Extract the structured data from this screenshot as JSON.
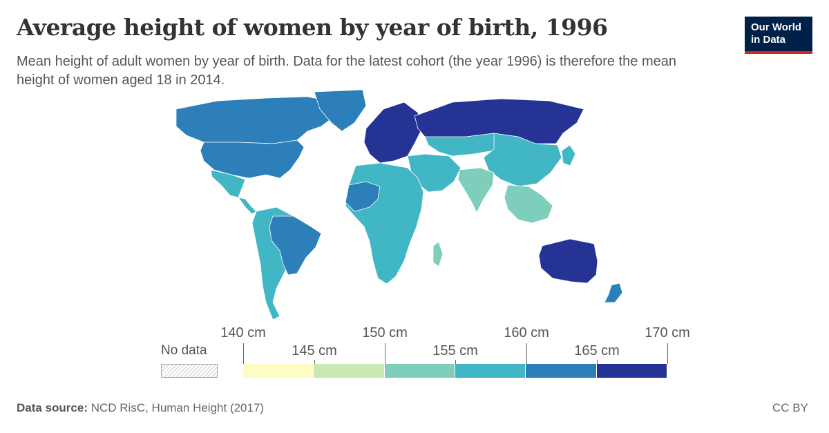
{
  "header": {
    "title": "Average height of women by year of birth, 1996",
    "subtitle": "Mean height of adult women by year of birth. Data for the latest cohort (the year 1996) is therefore the mean height of women aged 18 in 2014.",
    "logo_line1": "Our World",
    "logo_line2": "in Data"
  },
  "legend": {
    "no_data_label": "No data",
    "upper_ticks": [
      "140 cm",
      "150 cm",
      "160 cm",
      "170 cm"
    ],
    "lower_ticks": [
      "145 cm",
      "155 cm",
      "165 cm"
    ],
    "bins": [
      {
        "from": 140,
        "to": 145,
        "color": "#fdfdc3"
      },
      {
        "from": 145,
        "to": 150,
        "color": "#c8e9b5"
      },
      {
        "from": 150,
        "to": 155,
        "color": "#7fcdbb"
      },
      {
        "from": 155,
        "to": 160,
        "color": "#41b6c4"
      },
      {
        "from": 160,
        "to": 165,
        "color": "#2c7fb8"
      },
      {
        "from": 165,
        "to": 170,
        "color": "#253494"
      }
    ]
  },
  "footer": {
    "source_label": "Data source:",
    "source_text": "NCD RisC, Human Height (2017)",
    "license": "CC BY"
  },
  "map": {
    "regions": [
      {
        "name": "Canada",
        "color": "#2c7fb8"
      },
      {
        "name": "Greenland",
        "color": "#2c7fb8"
      },
      {
        "name": "United States",
        "color": "#2c7fb8"
      },
      {
        "name": "Mexico",
        "color": "#41b6c4"
      },
      {
        "name": "Central America",
        "color": "#41b6c4"
      },
      {
        "name": "South America",
        "color": "#41b6c4"
      },
      {
        "name": "Brazil",
        "color": "#2c7fb8"
      },
      {
        "name": "Europe",
        "color": "#253494"
      },
      {
        "name": "Russia",
        "color": "#253494"
      },
      {
        "name": "Central Asia",
        "color": "#41b6c4"
      },
      {
        "name": "China",
        "color": "#41b6c4"
      },
      {
        "name": "Middle East",
        "color": "#41b6c4"
      },
      {
        "name": "India",
        "color": "#7fcdbb"
      },
      {
        "name": "Southeast Asia",
        "color": "#7fcdbb"
      },
      {
        "name": "Africa",
        "color": "#41b6c4"
      },
      {
        "name": "West Africa",
        "color": "#2c7fb8"
      },
      {
        "name": "Madagascar",
        "color": "#7fcdbb"
      },
      {
        "name": "Australia",
        "color": "#253494"
      },
      {
        "name": "New Zealand",
        "color": "#2c7fb8"
      },
      {
        "name": "Japan",
        "color": "#41b6c4"
      }
    ]
  }
}
